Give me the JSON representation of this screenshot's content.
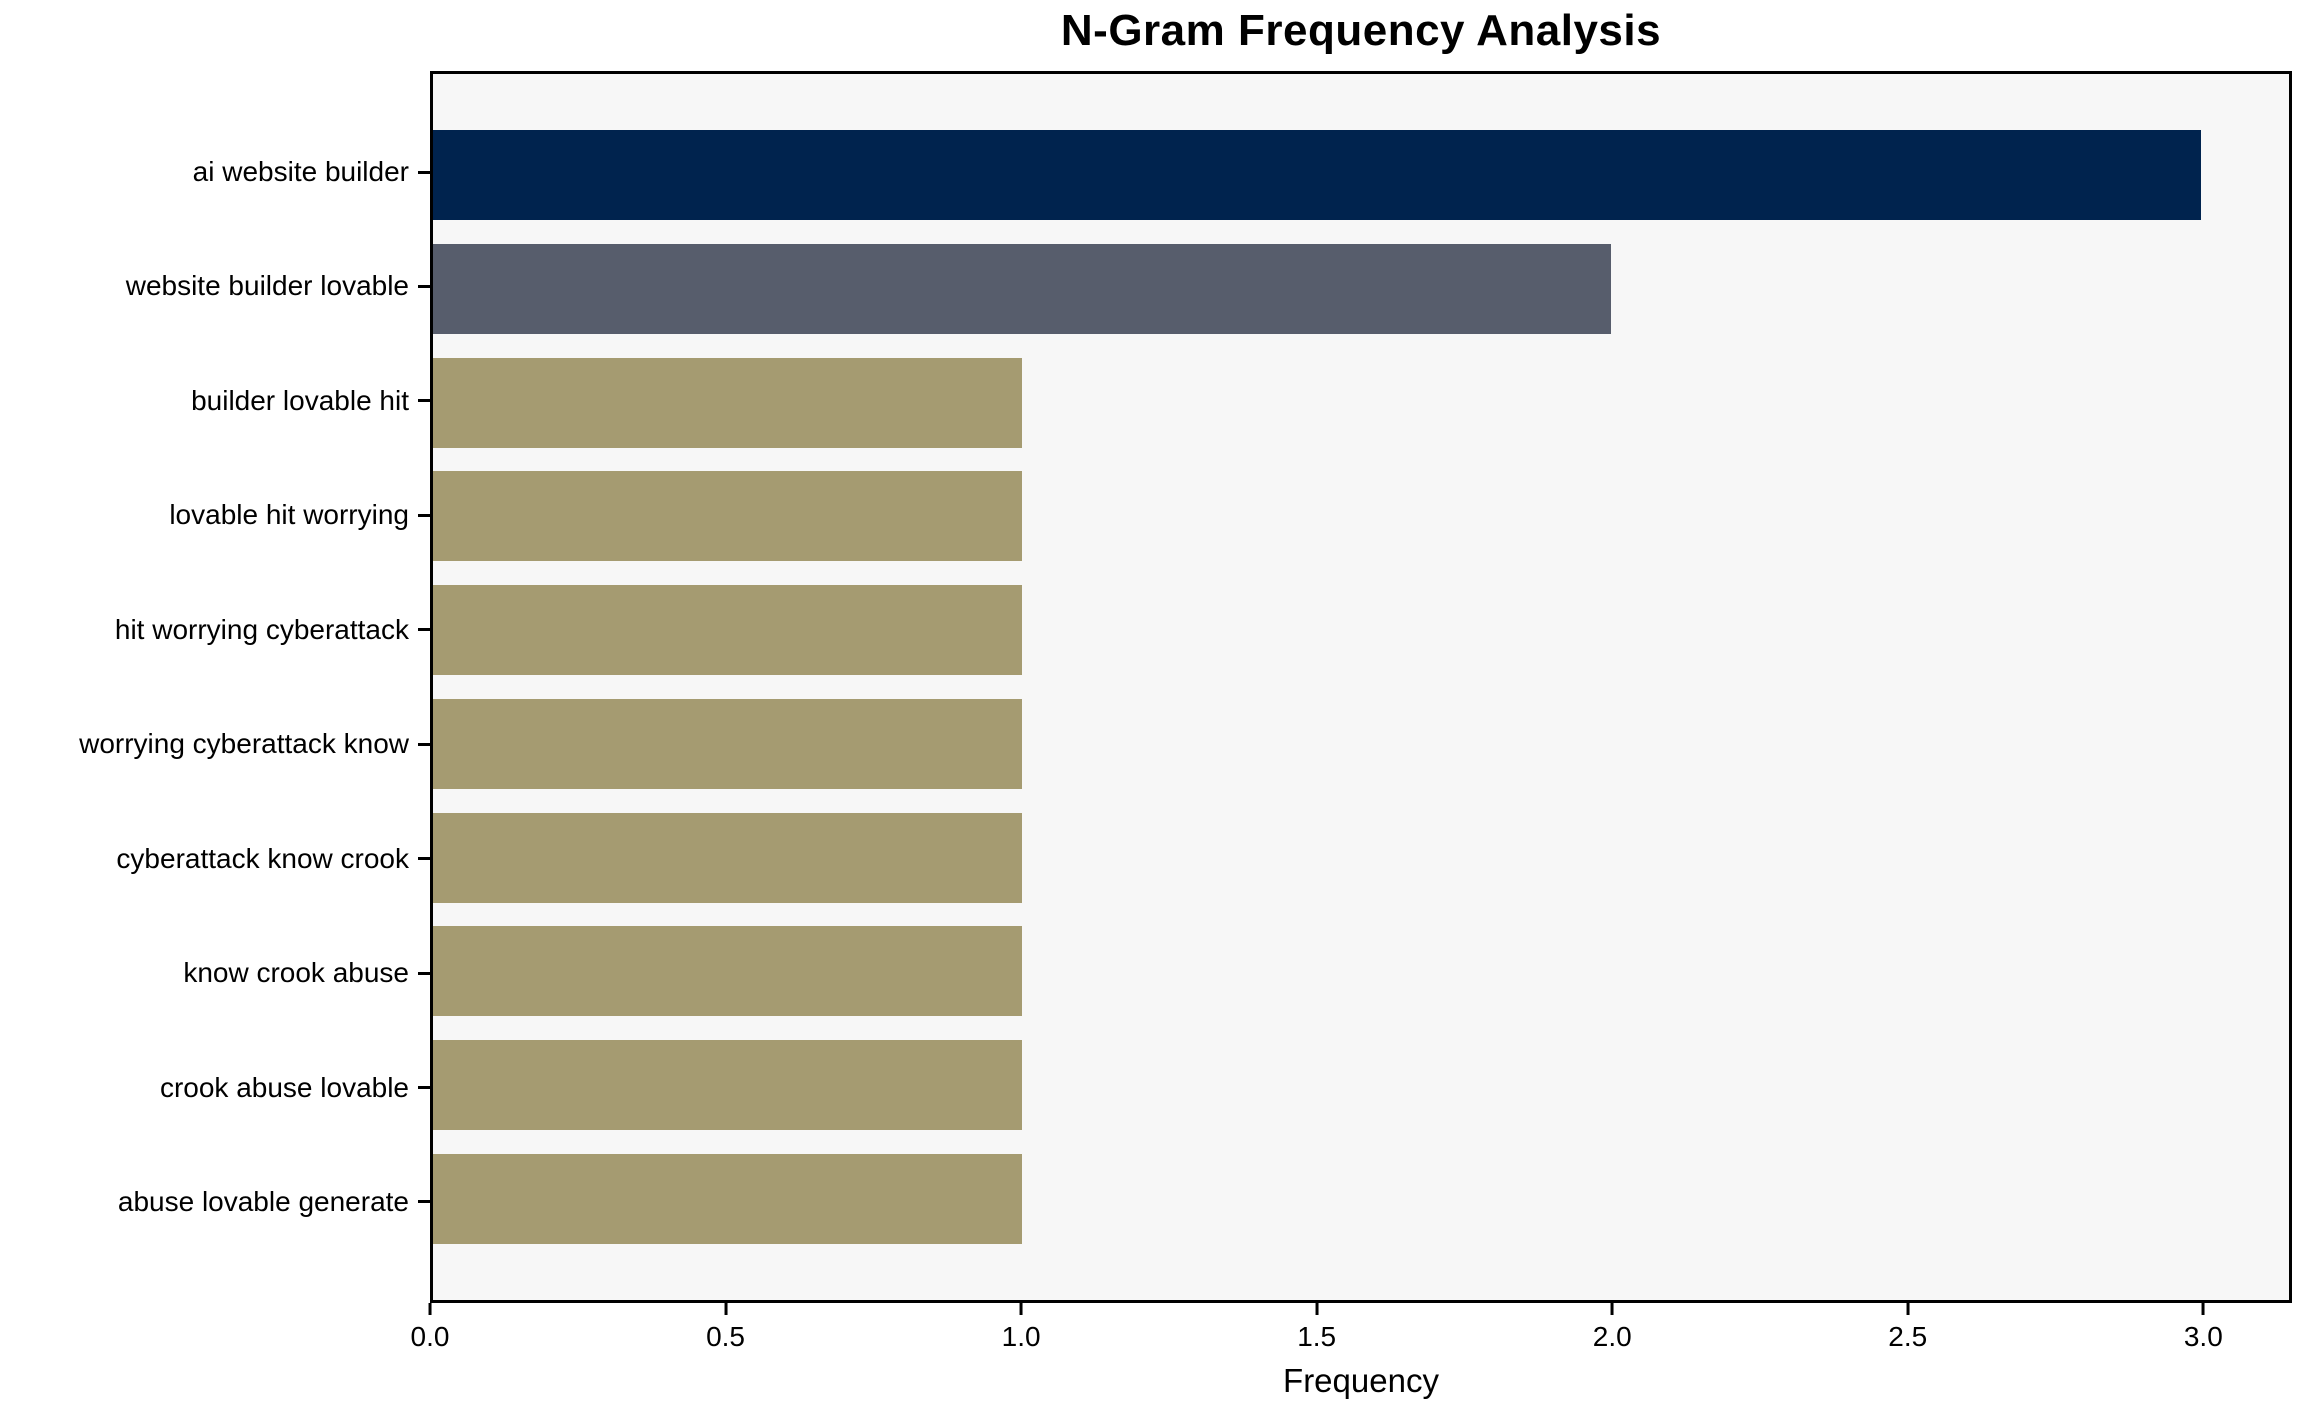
{
  "chart_data": {
    "type": "bar",
    "orientation": "horizontal",
    "title": "N-Gram Frequency Analysis",
    "xlabel": "Frequency",
    "ylabel": "",
    "categories": [
      "ai website builder",
      "website builder lovable",
      "builder lovable hit",
      "lovable hit worrying",
      "hit worrying cyberattack",
      "worrying cyberattack know",
      "cyberattack know crook",
      "know crook abuse",
      "crook abuse lovable",
      "abuse lovable generate"
    ],
    "values": [
      3,
      2,
      1,
      1,
      1,
      1,
      1,
      1,
      1,
      1
    ],
    "bar_colors": [
      "#00234e",
      "#575d6c",
      "#a59b71",
      "#a59b71",
      "#a59b71",
      "#a59b71",
      "#a59b71",
      "#a59b71",
      "#a59b71",
      "#a59b71"
    ],
    "xlim": [
      0,
      3.15
    ],
    "xticks": {
      "values": [
        0,
        0.5,
        1.0,
        1.5,
        2.0,
        2.5,
        3.0
      ],
      "labels": [
        "0.0",
        "0.5",
        "1.0",
        "1.5",
        "2.0",
        "2.5",
        "3.0"
      ]
    },
    "grid": false,
    "legend": "none",
    "plot_background": "#f7f7f7",
    "figure_background": "#ffffff",
    "frame_color": "#000000"
  }
}
